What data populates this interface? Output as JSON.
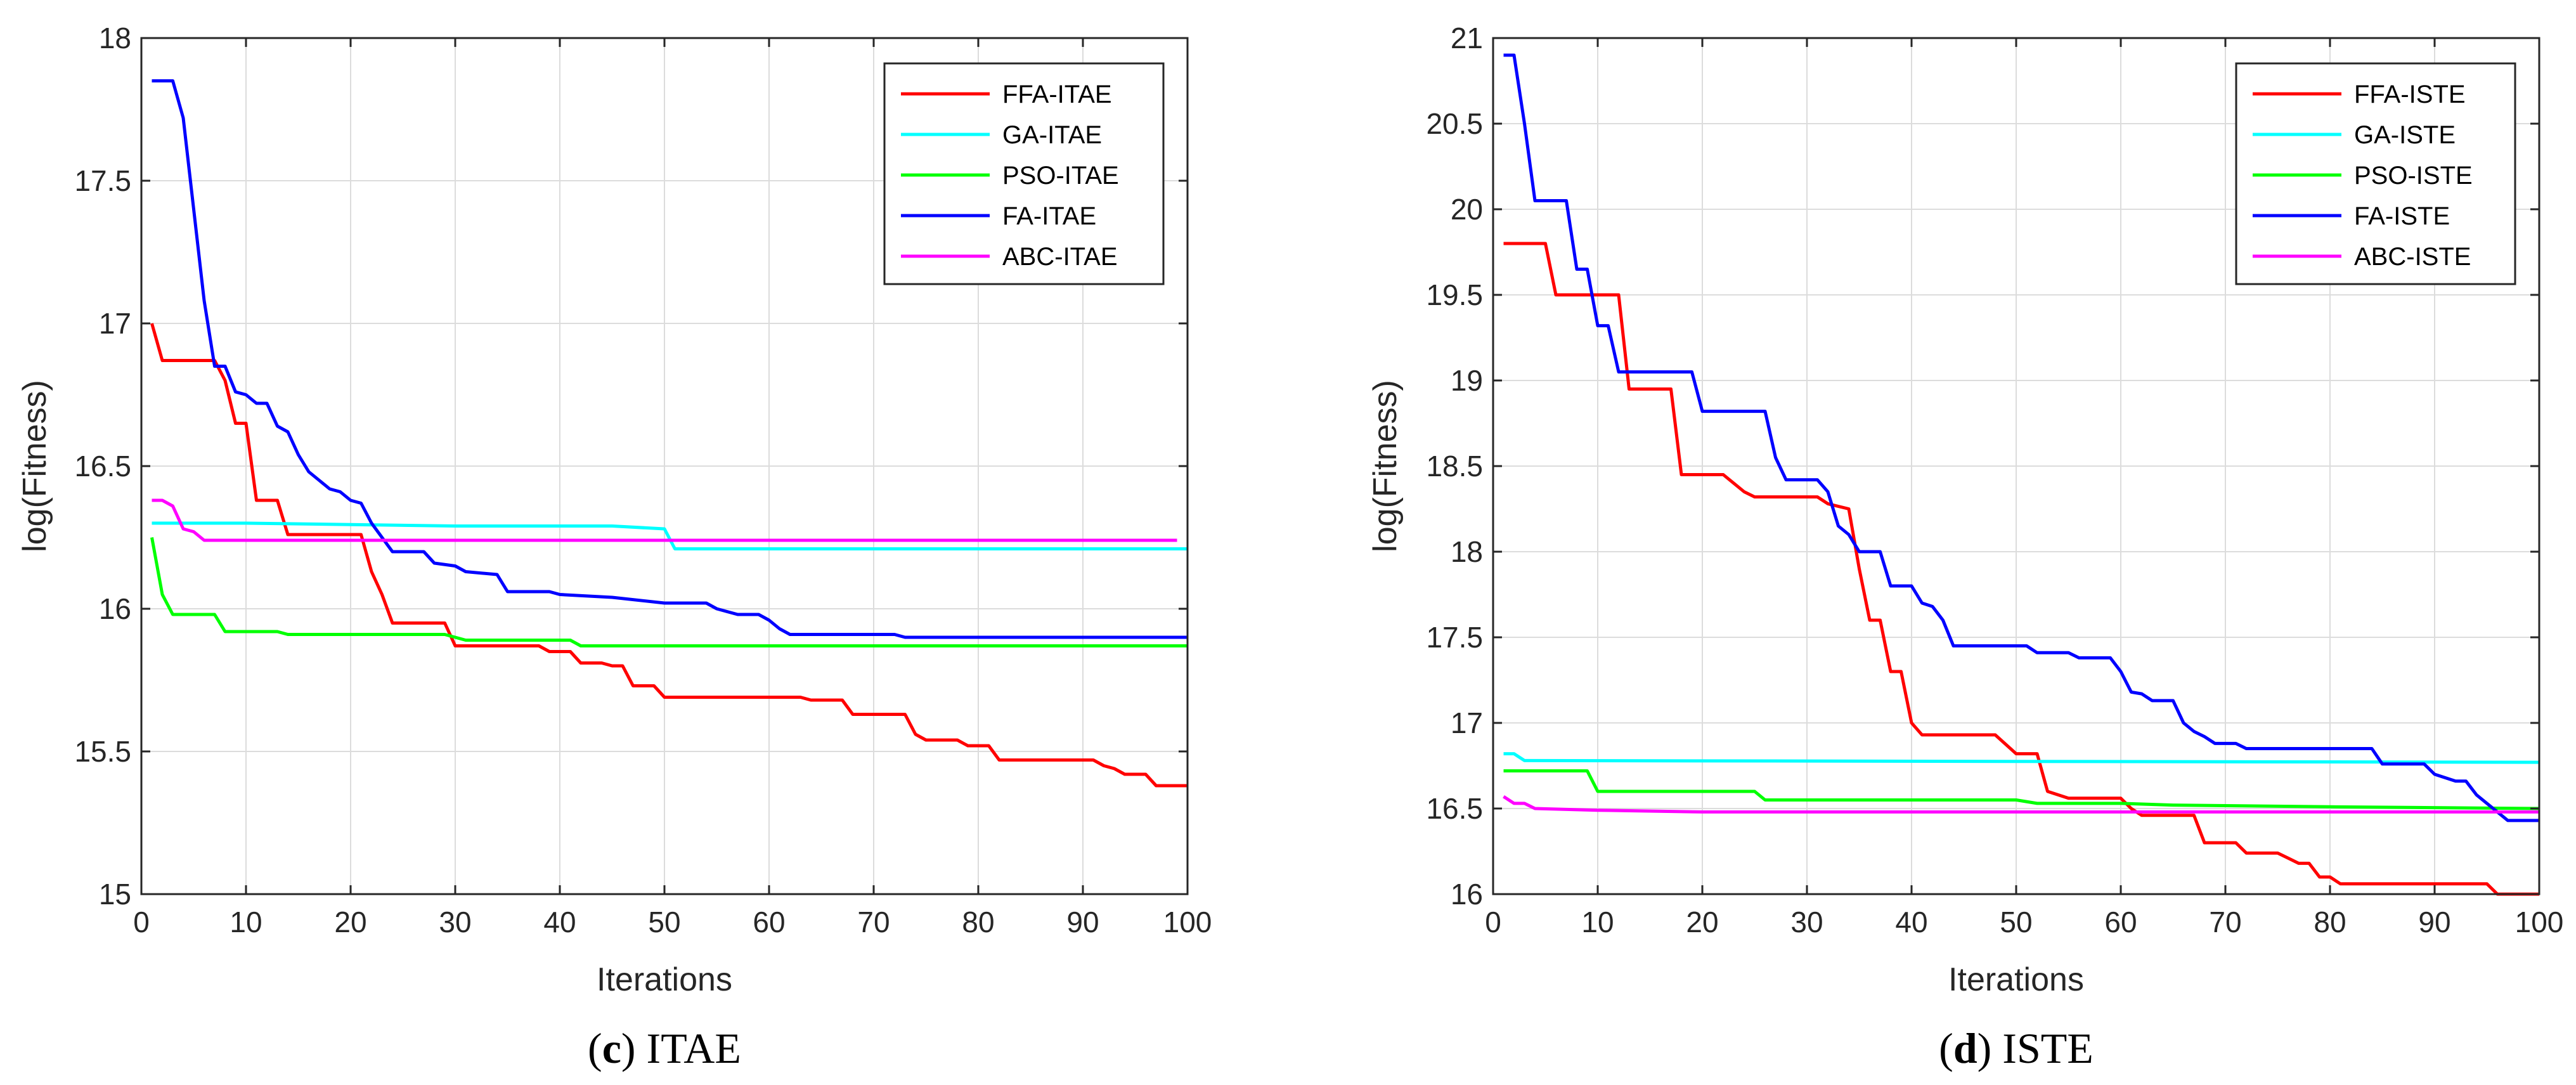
{
  "chart_data": [
    {
      "type": "line",
      "panel_letter": "c",
      "caption": "ITAE",
      "xlabel": "Iterations",
      "ylabel": "log(Fitness)",
      "xlim": [
        0,
        100
      ],
      "ylim": [
        15,
        18
      ],
      "xticks": [
        0,
        10,
        20,
        30,
        40,
        50,
        60,
        70,
        80,
        90,
        100
      ],
      "yticks": [
        15,
        15.5,
        16,
        16.5,
        17,
        17.5,
        18
      ],
      "grid": true,
      "legend_position": "top-right",
      "series": [
        {
          "name": "FFA-ITAE",
          "color": "#ff0000",
          "points": [
            [
              1,
              17.0
            ],
            [
              2,
              16.87
            ],
            [
              7,
              16.87
            ],
            [
              8,
              16.8
            ],
            [
              9,
              16.65
            ],
            [
              10,
              16.65
            ],
            [
              11,
              16.38
            ],
            [
              13,
              16.38
            ],
            [
              14,
              16.26
            ],
            [
              21,
              16.26
            ],
            [
              22,
              16.13
            ],
            [
              23,
              16.05
            ],
            [
              24,
              15.95
            ],
            [
              29,
              15.95
            ],
            [
              30,
              15.87
            ],
            [
              38,
              15.87
            ],
            [
              39,
              15.85
            ],
            [
              41,
              15.85
            ],
            [
              42,
              15.81
            ],
            [
              44,
              15.81
            ],
            [
              45,
              15.8
            ],
            [
              46,
              15.8
            ],
            [
              47,
              15.73
            ],
            [
              49,
              15.73
            ],
            [
              50,
              15.69
            ],
            [
              63,
              15.69
            ],
            [
              64,
              15.68
            ],
            [
              67,
              15.68
            ],
            [
              68,
              15.63
            ],
            [
              73,
              15.63
            ],
            [
              74,
              15.56
            ],
            [
              75,
              15.54
            ],
            [
              78,
              15.54
            ],
            [
              79,
              15.52
            ],
            [
              81,
              15.52
            ],
            [
              82,
              15.47
            ],
            [
              91,
              15.47
            ],
            [
              92,
              15.45
            ],
            [
              93,
              15.44
            ],
            [
              94,
              15.42
            ],
            [
              96,
              15.42
            ],
            [
              97,
              15.38
            ],
            [
              100,
              15.38
            ]
          ]
        },
        {
          "name": "GA-ITAE",
          "color": "#00ffff",
          "points": [
            [
              1,
              16.3
            ],
            [
              10,
              16.3
            ],
            [
              30,
              16.29
            ],
            [
              45,
              16.29
            ],
            [
              50,
              16.28
            ],
            [
              51,
              16.21
            ],
            [
              100,
              16.21
            ]
          ]
        },
        {
          "name": "PSO-ITAE",
          "color": "#00ff00",
          "points": [
            [
              1,
              16.25
            ],
            [
              2,
              16.05
            ],
            [
              3,
              15.98
            ],
            [
              7,
              15.98
            ],
            [
              8,
              15.92
            ],
            [
              13,
              15.92
            ],
            [
              14,
              15.91
            ],
            [
              29,
              15.91
            ],
            [
              31,
              15.89
            ],
            [
              41,
              15.89
            ],
            [
              42,
              15.87
            ],
            [
              100,
              15.87
            ]
          ]
        },
        {
          "name": "FA-ITAE",
          "color": "#0000ff",
          "points": [
            [
              1,
              17.85
            ],
            [
              3,
              17.85
            ],
            [
              4,
              17.72
            ],
            [
              5,
              17.4
            ],
            [
              6,
              17.08
            ],
            [
              7,
              16.85
            ],
            [
              8,
              16.85
            ],
            [
              9,
              16.76
            ],
            [
              10,
              16.75
            ],
            [
              11,
              16.72
            ],
            [
              12,
              16.72
            ],
            [
              13,
              16.64
            ],
            [
              14,
              16.62
            ],
            [
              15,
              16.54
            ],
            [
              16,
              16.48
            ],
            [
              17,
              16.45
            ],
            [
              18,
              16.42
            ],
            [
              19,
              16.41
            ],
            [
              20,
              16.38
            ],
            [
              21,
              16.37
            ],
            [
              22,
              16.3
            ],
            [
              23,
              16.25
            ],
            [
              24,
              16.2
            ],
            [
              27,
              16.2
            ],
            [
              28,
              16.16
            ],
            [
              30,
              16.15
            ],
            [
              31,
              16.13
            ],
            [
              34,
              16.12
            ],
            [
              35,
              16.06
            ],
            [
              39,
              16.06
            ],
            [
              40,
              16.05
            ],
            [
              45,
              16.04
            ],
            [
              50,
              16.02
            ],
            [
              54,
              16.02
            ],
            [
              55,
              16.0
            ],
            [
              57,
              15.98
            ],
            [
              59,
              15.98
            ],
            [
              60,
              15.96
            ],
            [
              61,
              15.93
            ],
            [
              62,
              15.91
            ],
            [
              72,
              15.91
            ],
            [
              73,
              15.9
            ],
            [
              100,
              15.9
            ]
          ]
        },
        {
          "name": "ABC-ITAE",
          "color": "#ff00ff",
          "points": [
            [
              1,
              16.38
            ],
            [
              2,
              16.38
            ],
            [
              3,
              16.36
            ],
            [
              4,
              16.28
            ],
            [
              5,
              16.27
            ],
            [
              6,
              16.24
            ],
            [
              99,
              16.24
            ]
          ]
        }
      ]
    },
    {
      "type": "line",
      "panel_letter": "d",
      "caption": "ISTE",
      "xlabel": "Iterations",
      "ylabel": "log(Fitness)",
      "xlim": [
        0,
        100
      ],
      "ylim": [
        16,
        21
      ],
      "xticks": [
        0,
        10,
        20,
        30,
        40,
        50,
        60,
        70,
        80,
        90,
        100
      ],
      "yticks": [
        16,
        16.5,
        17,
        17.5,
        18,
        18.5,
        19,
        19.5,
        20,
        20.5,
        21
      ],
      "grid": true,
      "legend_position": "top-right",
      "series": [
        {
          "name": "FFA-ISTE",
          "color": "#ff0000",
          "points": [
            [
              1,
              19.8
            ],
            [
              5,
              19.8
            ],
            [
              6,
              19.5
            ],
            [
              12,
              19.5
            ],
            [
              13,
              18.95
            ],
            [
              17,
              18.95
            ],
            [
              18,
              18.45
            ],
            [
              22,
              18.45
            ],
            [
              24,
              18.35
            ],
            [
              25,
              18.32
            ],
            [
              31,
              18.32
            ],
            [
              32,
              18.28
            ],
            [
              34,
              18.25
            ],
            [
              35,
              17.9
            ],
            [
              36,
              17.6
            ],
            [
              37,
              17.6
            ],
            [
              38,
              17.3
            ],
            [
              39,
              17.3
            ],
            [
              40,
              17.0
            ],
            [
              41,
              16.93
            ],
            [
              48,
              16.93
            ],
            [
              50,
              16.82
            ],
            [
              52,
              16.82
            ],
            [
              53,
              16.6
            ],
            [
              54,
              16.58
            ],
            [
              55,
              16.56
            ],
            [
              60,
              16.56
            ],
            [
              61,
              16.5
            ],
            [
              62,
              16.46
            ],
            [
              67,
              16.46
            ],
            [
              68,
              16.3
            ],
            [
              71,
              16.3
            ],
            [
              72,
              16.24
            ],
            [
              75,
              16.24
            ],
            [
              76,
              16.21
            ],
            [
              77,
              16.18
            ],
            [
              78,
              16.18
            ],
            [
              79,
              16.1
            ],
            [
              80,
              16.1
            ],
            [
              81,
              16.06
            ],
            [
              95,
              16.06
            ],
            [
              96,
              16.0
            ],
            [
              100,
              16.0
            ]
          ]
        },
        {
          "name": "GA-ISTE",
          "color": "#00ffff",
          "points": [
            [
              1,
              16.82
            ],
            [
              2,
              16.82
            ],
            [
              3,
              16.78
            ],
            [
              100,
              16.77
            ]
          ]
        },
        {
          "name": "PSO-ISTE",
          "color": "#00ff00",
          "points": [
            [
              1,
              16.72
            ],
            [
              9,
              16.72
            ],
            [
              10,
              16.6
            ],
            [
              25,
              16.6
            ],
            [
              26,
              16.55
            ],
            [
              50,
              16.55
            ],
            [
              52,
              16.53
            ],
            [
              60,
              16.53
            ],
            [
              65,
              16.52
            ],
            [
              80,
              16.51
            ],
            [
              100,
              16.5
            ]
          ]
        },
        {
          "name": "FA-ISTE",
          "color": "#0000ff",
          "points": [
            [
              1,
              20.9
            ],
            [
              2,
              20.9
            ],
            [
              3,
              20.5
            ],
            [
              4,
              20.05
            ],
            [
              7,
              20.05
            ],
            [
              8,
              19.65
            ],
            [
              9,
              19.65
            ],
            [
              10,
              19.32
            ],
            [
              11,
              19.32
            ],
            [
              12,
              19.05
            ],
            [
              19,
              19.05
            ],
            [
              20,
              18.82
            ],
            [
              26,
              18.82
            ],
            [
              27,
              18.55
            ],
            [
              28,
              18.42
            ],
            [
              31,
              18.42
            ],
            [
              32,
              18.35
            ],
            [
              33,
              18.15
            ],
            [
              34,
              18.1
            ],
            [
              35,
              18.0
            ],
            [
              37,
              18.0
            ],
            [
              38,
              17.8
            ],
            [
              40,
              17.8
            ],
            [
              41,
              17.7
            ],
            [
              42,
              17.68
            ],
            [
              43,
              17.6
            ],
            [
              44,
              17.45
            ],
            [
              51,
              17.45
            ],
            [
              52,
              17.41
            ],
            [
              55,
              17.41
            ],
            [
              56,
              17.38
            ],
            [
              59,
              17.38
            ],
            [
              60,
              17.3
            ],
            [
              61,
              17.18
            ],
            [
              62,
              17.17
            ],
            [
              63,
              17.13
            ],
            [
              65,
              17.13
            ],
            [
              66,
              17.0
            ],
            [
              67,
              16.95
            ],
            [
              68,
              16.92
            ],
            [
              69,
              16.88
            ],
            [
              71,
              16.88
            ],
            [
              72,
              16.85
            ],
            [
              84,
              16.85
            ],
            [
              85,
              16.76
            ],
            [
              89,
              16.76
            ],
            [
              90,
              16.7
            ],
            [
              91,
              16.68
            ],
            [
              92,
              16.66
            ],
            [
              93,
              16.66
            ],
            [
              94,
              16.58
            ],
            [
              95,
              16.53
            ],
            [
              96,
              16.48
            ],
            [
              97,
              16.43
            ],
            [
              100,
              16.43
            ]
          ]
        },
        {
          "name": "ABC-ISTE",
          "color": "#ff00ff",
          "points": [
            [
              1,
              16.57
            ],
            [
              2,
              16.53
            ],
            [
              3,
              16.53
            ],
            [
              4,
              16.5
            ],
            [
              10,
              16.49
            ],
            [
              20,
              16.48
            ],
            [
              100,
              16.48
            ]
          ]
        }
      ]
    }
  ]
}
